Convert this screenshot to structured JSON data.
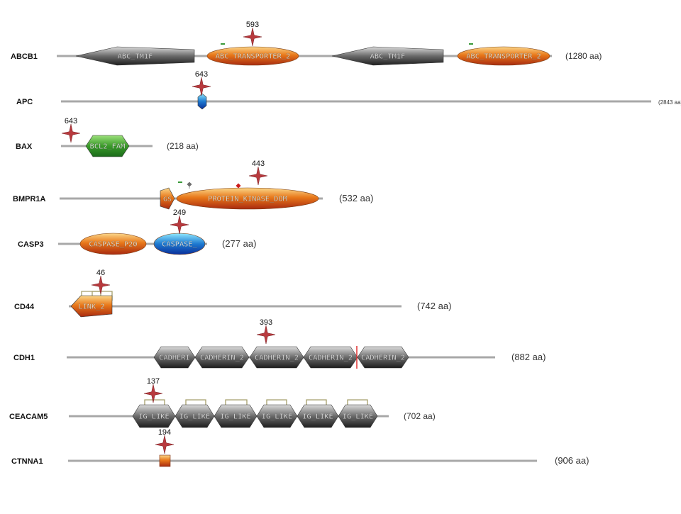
{
  "colors": {
    "backbone": "#a8a8a8",
    "mutation_star": "#b83a3e",
    "orange_domain_top": "#fbd78a",
    "orange_domain_mid": "#e8781a",
    "orange_domain_bottom": "#a82a10",
    "grey_domain_top": "#dcdcdc",
    "grey_domain_bottom": "#1e1e1e",
    "green_domain_top": "#9be07a",
    "green_domain_bottom": "#1a6b1a",
    "blue_domain_top": "#8fe8ff",
    "blue_domain_bottom": "#0a2f9a",
    "bracket": "#a59e6a",
    "cleavage_line": "#e03030",
    "green_tick": "#3a9a3a"
  },
  "genes": [
    {
      "name": "ABCB1",
      "length_label": "(1280 aa)",
      "domains": [
        {
          "label": "ABC_TM1F",
          "style": "grey",
          "shape": "arrow-left"
        },
        {
          "label": "ABC_TRANSPORTER_2",
          "style": "orange",
          "shape": "ellipse"
        },
        {
          "label": "ABC_TM1F",
          "style": "grey",
          "shape": "arrow-left"
        },
        {
          "label": "ABC_TRANSPORTER_2",
          "style": "orange",
          "shape": "ellipse"
        }
      ],
      "mutations": [
        {
          "label": "593"
        }
      ]
    },
    {
      "name": "APC",
      "length_label": "(2843 aa)",
      "domains": [
        {
          "label": "",
          "style": "blue",
          "shape": "small-hex"
        }
      ],
      "mutations": [
        {
          "label": "643"
        }
      ]
    },
    {
      "name": "BAX",
      "length_label": "(218 aa)",
      "domains": [
        {
          "label": "BCL2_FAM",
          "style": "green",
          "shape": "hexagon"
        }
      ],
      "mutations": [
        {
          "label": "643"
        }
      ]
    },
    {
      "name": "BMPR1A",
      "length_label": "(532 aa)",
      "domains": [
        {
          "label": "GS",
          "style": "orange",
          "shape": "pentagon"
        },
        {
          "label": "PROTEIN_KINASE_DOM",
          "style": "orange",
          "shape": "ellipse"
        }
      ],
      "mutations": [
        {
          "label": "443"
        }
      ]
    },
    {
      "name": "CASP3",
      "length_label": "(277 aa)",
      "domains": [
        {
          "label": "CASPASE_P20",
          "style": "orange",
          "shape": "ellipse"
        },
        {
          "label": "CASPASE_",
          "style": "blue",
          "shape": "ellipse"
        }
      ],
      "mutations": [
        {
          "label": "249"
        }
      ]
    },
    {
      "name": "CD44",
      "length_label": "(742 aa)",
      "domains": [
        {
          "label": "LINK_2",
          "style": "orange",
          "shape": "pentagon-left"
        }
      ],
      "mutations": [
        {
          "label": "46"
        }
      ]
    },
    {
      "name": "CDH1",
      "length_label": "(882 aa)",
      "domains": [
        {
          "label": "CADHERI",
          "style": "grey",
          "shape": "hexagon"
        },
        {
          "label": "CADHERIN_2",
          "style": "grey",
          "shape": "hexagon"
        },
        {
          "label": "CADHERIN_2",
          "style": "grey",
          "shape": "hexagon"
        },
        {
          "label": "CADHERIN_2",
          "style": "grey",
          "shape": "hexagon"
        },
        {
          "label": "CADHERIN_2",
          "style": "grey",
          "shape": "hexagon"
        }
      ],
      "mutations": [
        {
          "label": "393"
        }
      ]
    },
    {
      "name": "CEACAM5",
      "length_label": "(702 aa)",
      "domains": [
        {
          "label": "IG_LIKE",
          "style": "grey",
          "shape": "hexagon"
        },
        {
          "label": "IG_LIKE",
          "style": "grey",
          "shape": "hexagon"
        },
        {
          "label": "IG_LIKE",
          "style": "grey",
          "shape": "hexagon"
        },
        {
          "label": "IG_LIKE",
          "style": "grey",
          "shape": "hexagon"
        },
        {
          "label": "IG_LIKE",
          "style": "grey",
          "shape": "hexagon"
        },
        {
          "label": "IG_LIKE",
          "style": "grey",
          "shape": "hexagon"
        }
      ],
      "mutations": [
        {
          "label": "137"
        }
      ]
    },
    {
      "name": "CTNNA1",
      "length_label": "(906 aa)",
      "domains": [
        {
          "label": "",
          "style": "orange",
          "shape": "square"
        }
      ],
      "mutations": [
        {
          "label": "194"
        }
      ]
    }
  ]
}
